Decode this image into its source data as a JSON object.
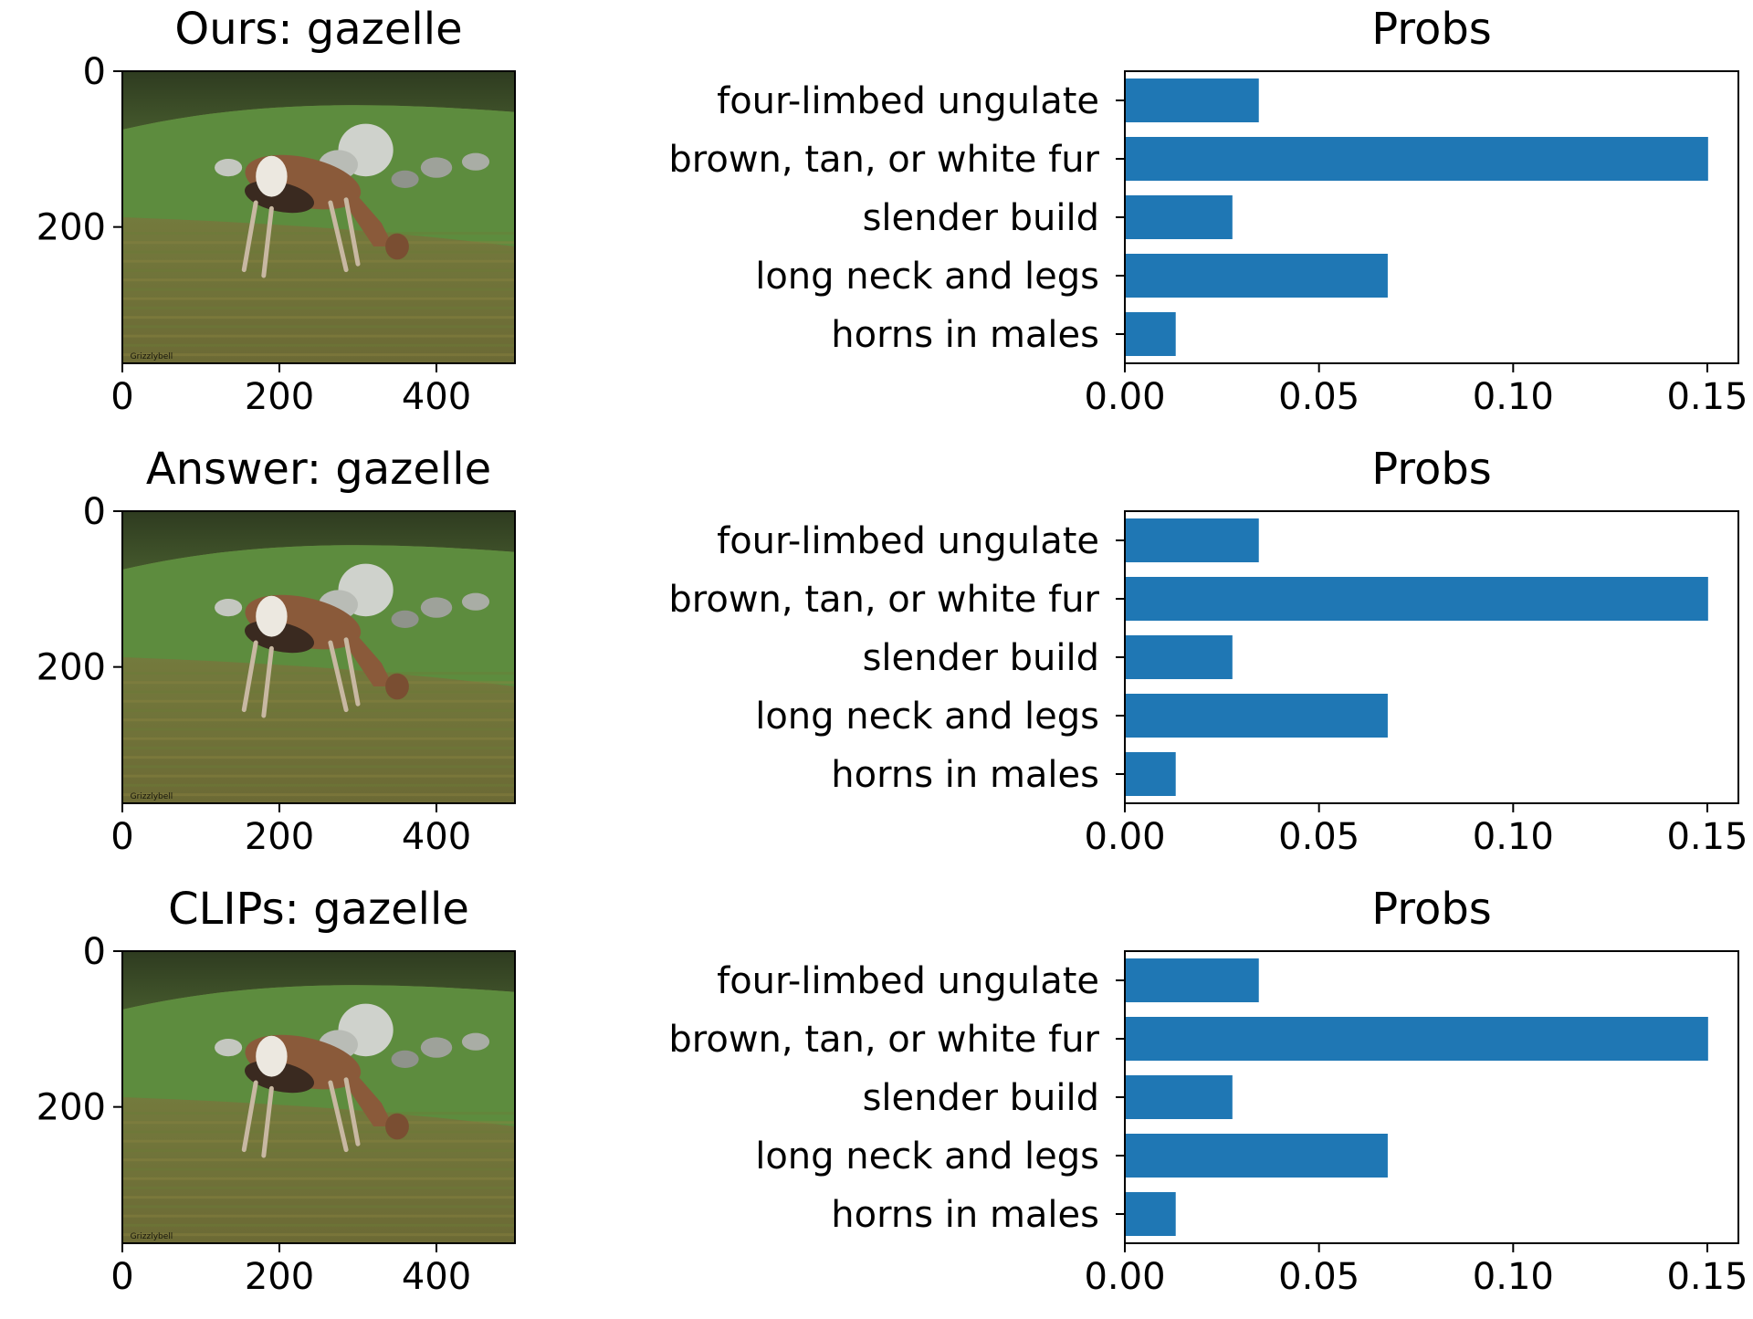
{
  "figure_titles": [
    "Ours: gazelle",
    "Answer: gazelle",
    "CLIPs: gazelle"
  ],
  "image_panel": {
    "x_ticks": [
      "0",
      "200",
      "400"
    ],
    "y_ticks": [
      "0",
      "200"
    ],
    "xlim": [
      0,
      500
    ],
    "ylim": [
      375,
      0
    ],
    "photo_subject": "gazelle grazing in a grassy field",
    "watermark": "Grizzlybell"
  },
  "chart_data": [
    {
      "type": "bar",
      "orientation": "horizontal",
      "title": "Probs",
      "categories": [
        "four-limbed ungulate",
        "brown, tan, or white fur",
        "slender build",
        "long neck and legs",
        "horns in males"
      ],
      "values": [
        0.0345,
        0.1502,
        0.0277,
        0.0677,
        0.0131
      ],
      "xlim": [
        0.0,
        0.158
      ],
      "x_ticks": [
        "0.00",
        "0.05",
        "0.10",
        "0.15"
      ],
      "bar_color": "#1f77b4",
      "grid": false
    },
    {
      "type": "bar",
      "orientation": "horizontal",
      "title": "Probs",
      "categories": [
        "four-limbed ungulate",
        "brown, tan, or white fur",
        "slender build",
        "long neck and legs",
        "horns in males"
      ],
      "values": [
        0.0345,
        0.1502,
        0.0277,
        0.0677,
        0.0131
      ],
      "xlim": [
        0.0,
        0.158
      ],
      "x_ticks": [
        "0.00",
        "0.05",
        "0.10",
        "0.15"
      ],
      "bar_color": "#1f77b4",
      "grid": false
    },
    {
      "type": "bar",
      "orientation": "horizontal",
      "title": "Probs",
      "categories": [
        "four-limbed ungulate",
        "brown, tan, or white fur",
        "slender build",
        "long neck and legs",
        "horns in males"
      ],
      "values": [
        0.0345,
        0.1502,
        0.0277,
        0.0677,
        0.0131
      ],
      "xlim": [
        0.0,
        0.158
      ],
      "x_ticks": [
        "0.00",
        "0.05",
        "0.10",
        "0.15"
      ],
      "bar_color": "#1f77b4",
      "grid": false
    }
  ]
}
